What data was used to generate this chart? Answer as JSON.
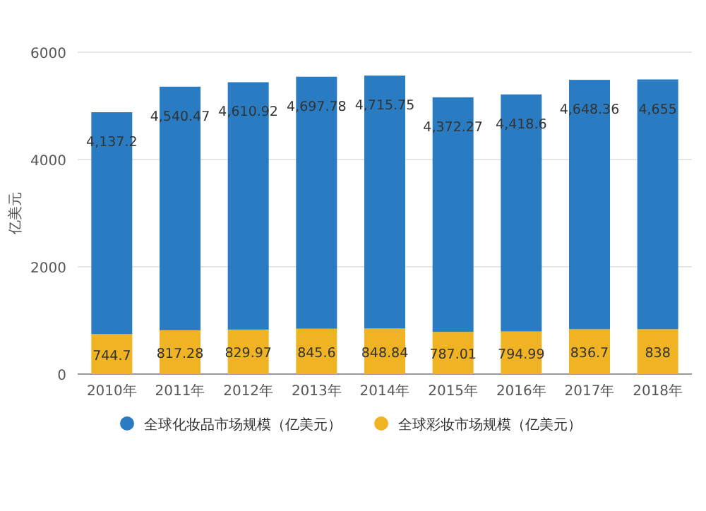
{
  "chart_data": {
    "type": "bar",
    "stacked": true,
    "ylabel": "亿美元",
    "categories": [
      "2010年",
      "2011年",
      "2012年",
      "2013年",
      "2014年",
      "2015年",
      "2016年",
      "2017年",
      "2018年"
    ],
    "series": [
      {
        "name": "全球彩妆市场规模（亿美元）",
        "color": "#f0b323",
        "values": [
          744.7,
          817.28,
          829.97,
          845.6,
          848.84,
          787.01,
          794.99,
          836.7,
          838
        ],
        "value_labels": [
          "744.7",
          "817.28",
          "829.97",
          "845.6",
          "848.84",
          "787.01",
          "794.99",
          "836.7",
          "838"
        ]
      },
      {
        "name": "全球化妆品市场规模（亿美元）",
        "color": "#2a7cc2",
        "values": [
          4137.2,
          4540.47,
          4610.92,
          4697.78,
          4715.75,
          4372.27,
          4418.6,
          4648.36,
          4655
        ],
        "value_labels": [
          "4,137.2",
          "4,540.47",
          "4,610.92",
          "4,697.78",
          "4,715.75",
          "4,372.27",
          "4,418.6",
          "4,648.36",
          "4,655"
        ]
      }
    ],
    "ylim": [
      0,
      6000
    ],
    "yticks": [
      0,
      2000,
      4000,
      6000
    ],
    "grid": "y",
    "legend": "bottom"
  }
}
